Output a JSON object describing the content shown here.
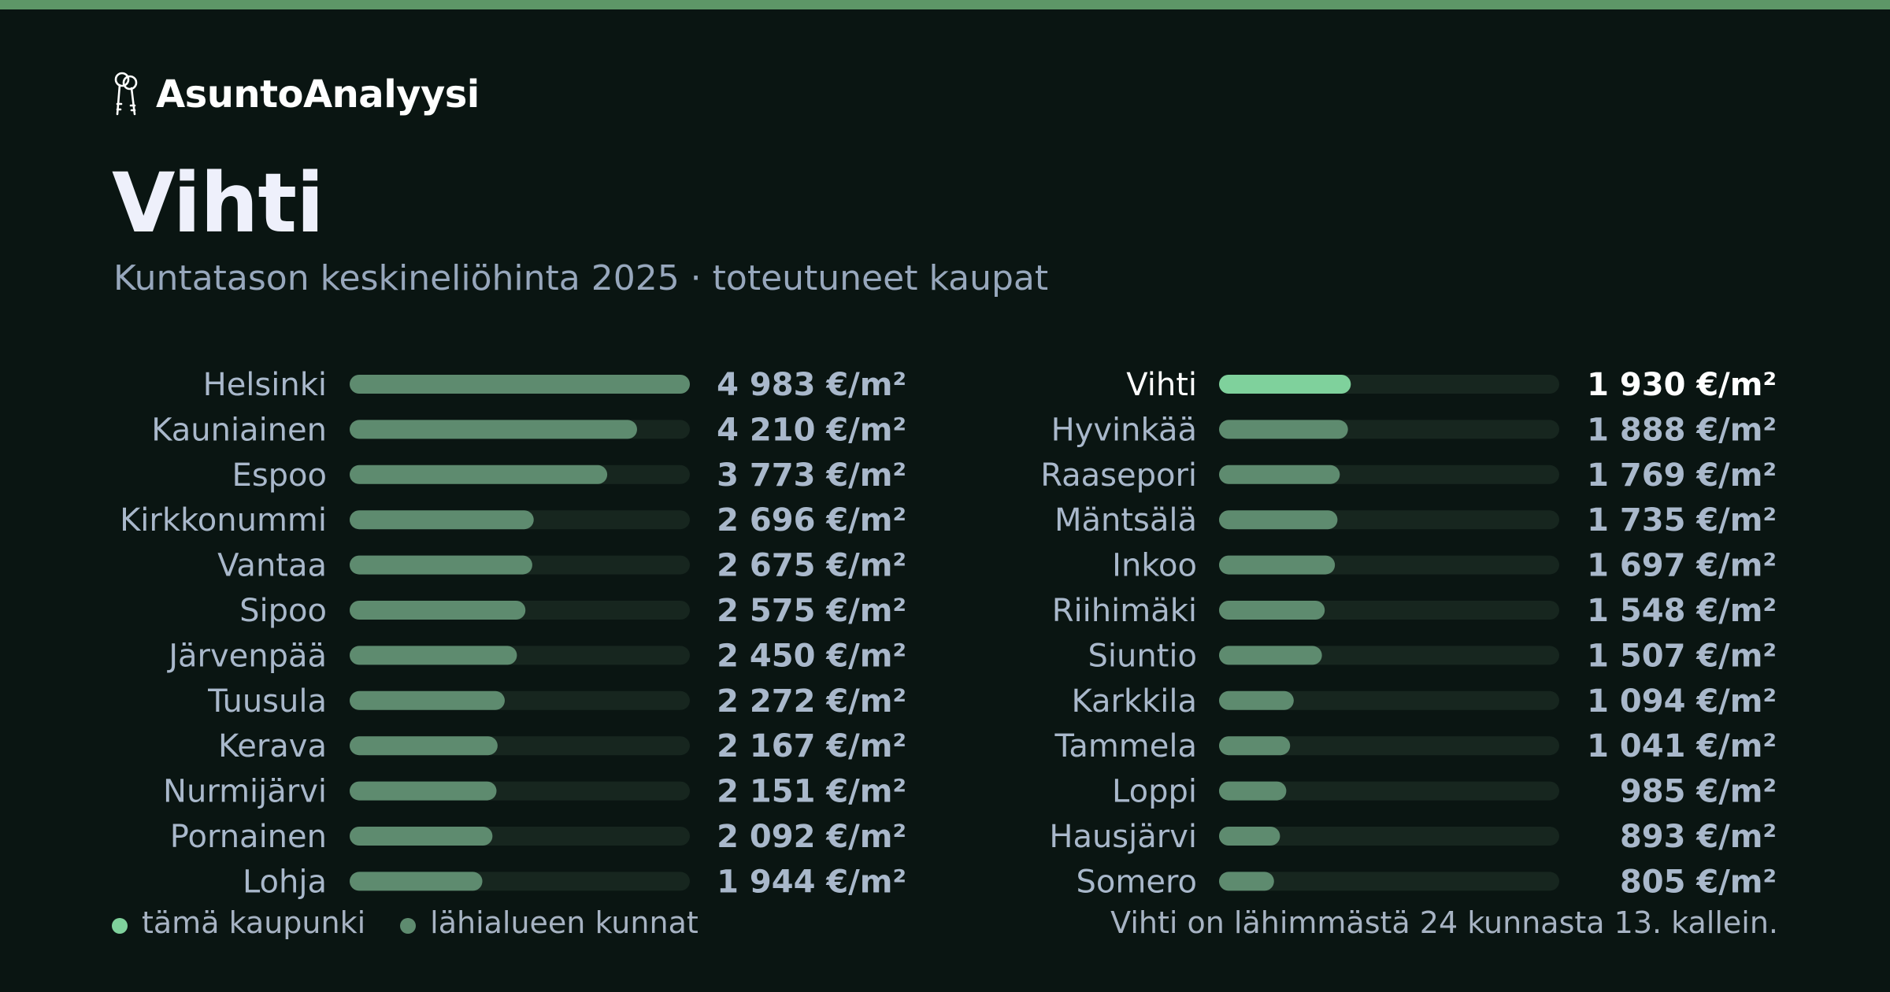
{
  "brand": {
    "name": "AsuntoAnalyysi",
    "icon": "keys-icon"
  },
  "city": "Vihti",
  "subtitle": "Kuntatason keskineliöhinta 2025 · toteutuneet kaupat",
  "colors": {
    "background": "#0a1512",
    "accent_stripe": "#5d9667",
    "highlight_bar": "#7fd19c",
    "bar": "#5e8b6f",
    "track": "#17261f",
    "label": "#a9b8cb",
    "value": "#a9b8cb",
    "highlight_text": "#ffffff"
  },
  "legend": {
    "this_city": {
      "label": "tämä kaupunki",
      "color": "#7fd19c"
    },
    "neighbors": {
      "label": "lähialueen kunnat",
      "color": "#5e8b6f"
    }
  },
  "footnote": "Vihti on lähimmästä 24 kunnasta 13. kallein.",
  "chart_data": {
    "type": "bar",
    "orientation": "horizontal",
    "unit": "€/m²",
    "xlim": [
      0,
      4983
    ],
    "highlight": "Vihti",
    "categories": [
      "Helsinki",
      "Kauniainen",
      "Espoo",
      "Kirkkonummi",
      "Vantaa",
      "Sipoo",
      "Järvenpää",
      "Tuusula",
      "Kerava",
      "Nurmijärvi",
      "Pornainen",
      "Lohja",
      "Vihti",
      "Hyvinkää",
      "Raasepori",
      "Mäntsälä",
      "Inkoo",
      "Riihimäki",
      "Siuntio",
      "Karkkila",
      "Tammela",
      "Loppi",
      "Hausjärvi",
      "Somero"
    ],
    "values": [
      4983,
      4210,
      3773,
      2696,
      2675,
      2575,
      2450,
      2272,
      2167,
      2151,
      2092,
      1944,
      1930,
      1888,
      1769,
      1735,
      1697,
      1548,
      1507,
      1094,
      1041,
      985,
      893,
      805
    ],
    "value_labels": [
      "4 983 €/m²",
      "4 210 €/m²",
      "3 773 €/m²",
      "2 696 €/m²",
      "2 675 €/m²",
      "2 575 €/m²",
      "2 450 €/m²",
      "2 272 €/m²",
      "2 167 €/m²",
      "2 151 €/m²",
      "2 092 €/m²",
      "1 944 €/m²",
      "1 930 €/m²",
      "1 888 €/m²",
      "1 769 €/m²",
      "1 735 €/m²",
      "1 697 €/m²",
      "1 548 €/m²",
      "1 507 €/m²",
      "1 094 €/m²",
      "1 041 €/m²",
      "985 €/m²",
      "893 €/m²",
      "805 €/m²"
    ],
    "grid": false,
    "legend_position": "bottom-left"
  }
}
